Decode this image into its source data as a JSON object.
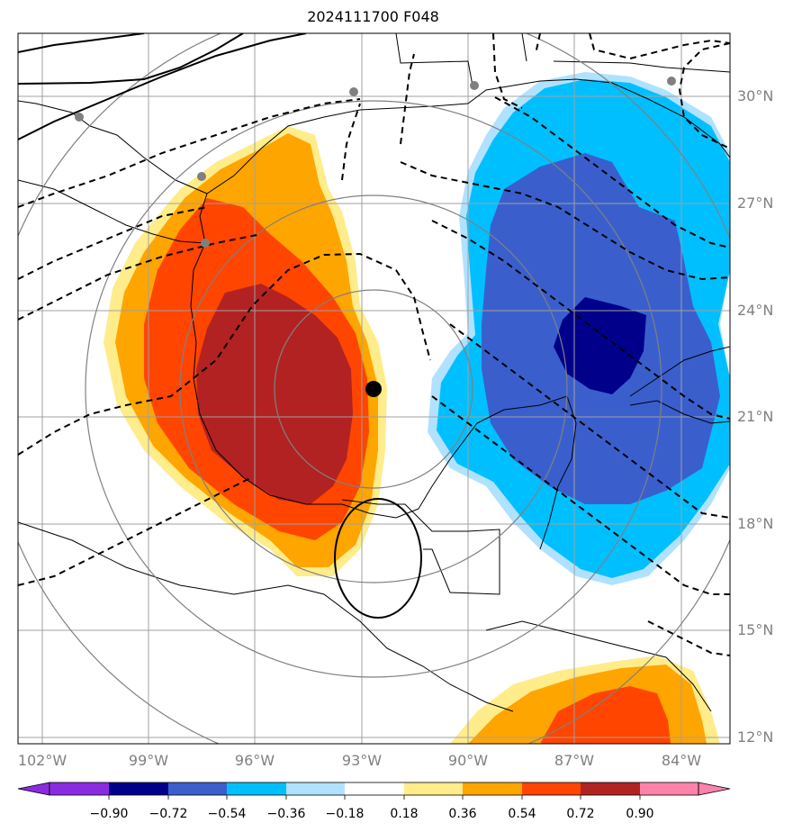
{
  "title": "2024111700 F048",
  "lat_labels": [
    "30°N",
    "27°N",
    "24°N",
    "21°N",
    "18°N",
    "15°N",
    "12°N"
  ],
  "lon_labels": [
    "102°W",
    "99°W",
    "96°W",
    "93°W",
    "90°W",
    "87°W",
    "84°W"
  ],
  "colorbar": {
    "ticks": [
      "−0.90",
      "−0.72",
      "−0.54",
      "−0.36",
      "−0.18",
      "0.18",
      "0.36",
      "0.54",
      "0.72",
      "0.90"
    ],
    "colors": [
      "#8a2be2",
      "#00008b",
      "#3a5fcd",
      "#00bfff",
      "#b0e2ff",
      "#ffffff",
      "#ffec8b",
      "#ffa500",
      "#ff4500",
      "#b22222",
      "#ff82ab"
    ]
  },
  "center_marker": {
    "lat": 21.8,
    "lon": -92.6
  },
  "colors": {
    "gridline": "#a0a0a0",
    "range_ring": "#808080",
    "positive_1": "#ffec8b",
    "positive_2": "#ffa500",
    "positive_3": "#ff4500",
    "positive_4": "#b22222",
    "negative_1": "#b0e2ff",
    "negative_2": "#00bfff",
    "negative_3": "#3a5fcd",
    "negative_4": "#00008b"
  }
}
